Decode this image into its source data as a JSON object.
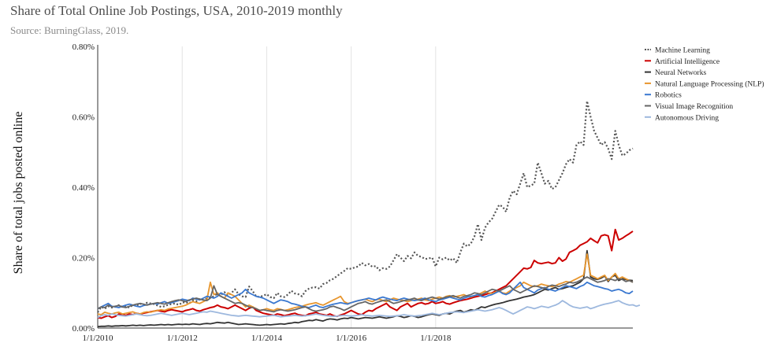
{
  "chart_data": {
    "type": "line",
    "title": "Share of Total Online Job Postings, USA, 2010-2019 monthly",
    "subtitle": "Source: BurningGlass, 2019.",
    "xlabel": "",
    "ylabel": "Share of total jobs posted online",
    "x_start": "2010-01",
    "x_ticks": [
      "1/1/2010",
      "1/1/2012",
      "1/1/2014",
      "1/1/2016",
      "1/1/2018"
    ],
    "y_ticks": [
      "0.00%",
      "0.20%",
      "0.40%",
      "0.60%",
      "0.80%"
    ],
    "ylim": [
      0,
      0.8
    ],
    "grid": "vertical",
    "legend_position": "top-right",
    "series": [
      {
        "name": "Machine Learning",
        "color": "#555555",
        "dash": "dotted",
        "width": 2.2,
        "values": [
          0.045,
          0.06,
          0.055,
          0.062,
          0.058,
          0.06,
          0.065,
          0.06,
          0.062,
          0.058,
          0.066,
          0.063,
          0.07,
          0.065,
          0.072,
          0.07,
          0.068,
          0.064,
          0.06,
          0.062,
          0.066,
          0.068,
          0.07,
          0.066,
          0.072,
          0.074,
          0.07,
          0.078,
          0.076,
          0.082,
          0.08,
          0.084,
          0.086,
          0.09,
          0.098,
          0.094,
          0.102,
          0.092,
          0.1,
          0.11,
          0.096,
          0.09,
          0.088,
          0.118,
          0.105,
          0.09,
          0.088,
          0.092,
          0.096,
          0.088,
          0.085,
          0.1,
          0.09,
          0.088,
          0.095,
          0.106,
          0.098,
          0.096,
          0.09,
          0.105,
          0.112,
          0.115,
          0.116,
          0.112,
          0.125,
          0.128,
          0.136,
          0.14,
          0.148,
          0.155,
          0.162,
          0.17,
          0.168,
          0.172,
          0.175,
          0.185,
          0.178,
          0.182,
          0.174,
          0.176,
          0.164,
          0.17,
          0.168,
          0.175,
          0.192,
          0.21,
          0.2,
          0.19,
          0.205,
          0.198,
          0.215,
          0.205,
          0.202,
          0.196,
          0.198,
          0.2,
          0.175,
          0.2,
          0.195,
          0.2,
          0.192,
          0.198,
          0.185,
          0.215,
          0.24,
          0.232,
          0.24,
          0.26,
          0.295,
          0.25,
          0.285,
          0.3,
          0.31,
          0.33,
          0.35,
          0.345,
          0.33,
          0.37,
          0.39,
          0.38,
          0.41,
          0.44,
          0.4,
          0.405,
          0.41,
          0.47,
          0.44,
          0.41,
          0.418,
          0.395,
          0.4,
          0.42,
          0.44,
          0.465,
          0.48,
          0.47,
          0.52,
          0.53,
          0.52,
          0.645,
          0.6,
          0.56,
          0.54,
          0.52,
          0.528,
          0.51,
          0.48,
          0.56,
          0.52,
          0.49,
          0.495,
          0.505,
          0.51
        ]
      },
      {
        "name": "Artificial Intelligence",
        "color": "#cc0000",
        "dash": "solid",
        "width": 2,
        "values": [
          0.03,
          0.028,
          0.032,
          0.035,
          0.03,
          0.033,
          0.04,
          0.038,
          0.036,
          0.04,
          0.038,
          0.042,
          0.04,
          0.042,
          0.044,
          0.046,
          0.048,
          0.05,
          0.048,
          0.046,
          0.05,
          0.052,
          0.05,
          0.048,
          0.046,
          0.05,
          0.052,
          0.055,
          0.05,
          0.048,
          0.052,
          0.055,
          0.058,
          0.06,
          0.065,
          0.06,
          0.058,
          0.055,
          0.06,
          0.065,
          0.06,
          0.055,
          0.05,
          0.056,
          0.06,
          0.05,
          0.046,
          0.042,
          0.04,
          0.038,
          0.036,
          0.04,
          0.038,
          0.035,
          0.037,
          0.04,
          0.042,
          0.038,
          0.036,
          0.035,
          0.04,
          0.042,
          0.045,
          0.04,
          0.038,
          0.036,
          0.04,
          0.035,
          0.033,
          0.037,
          0.04,
          0.045,
          0.05,
          0.045,
          0.04,
          0.038,
          0.045,
          0.05,
          0.048,
          0.055,
          0.06,
          0.065,
          0.07,
          0.06,
          0.055,
          0.05,
          0.06,
          0.065,
          0.07,
          0.06,
          0.065,
          0.07,
          0.072,
          0.068,
          0.07,
          0.075,
          0.07,
          0.072,
          0.075,
          0.07,
          0.068,
          0.072,
          0.075,
          0.078,
          0.08,
          0.082,
          0.085,
          0.088,
          0.09,
          0.092,
          0.095,
          0.098,
          0.1,
          0.105,
          0.11,
          0.115,
          0.12,
          0.13,
          0.14,
          0.15,
          0.16,
          0.17,
          0.168,
          0.172,
          0.192,
          0.185,
          0.183,
          0.185,
          0.187,
          0.183,
          0.185,
          0.2,
          0.19,
          0.196,
          0.215,
          0.22,
          0.225,
          0.235,
          0.24,
          0.245,
          0.255,
          0.248,
          0.242,
          0.262,
          0.265,
          0.262,
          0.22,
          0.28,
          0.25,
          0.255,
          0.262,
          0.268,
          0.275
        ]
      },
      {
        "name": "Neural Networks",
        "color": "#333333",
        "dash": "solid",
        "width": 1.8,
        "values": [
          0.004,
          0.005,
          0.005,
          0.006,
          0.005,
          0.006,
          0.006,
          0.007,
          0.006,
          0.007,
          0.008,
          0.007,
          0.008,
          0.007,
          0.008,
          0.009,
          0.008,
          0.009,
          0.01,
          0.009,
          0.01,
          0.009,
          0.01,
          0.011,
          0.01,
          0.011,
          0.01,
          0.012,
          0.011,
          0.01,
          0.012,
          0.013,
          0.012,
          0.014,
          0.016,
          0.015,
          0.014,
          0.016,
          0.014,
          0.012,
          0.01,
          0.011,
          0.012,
          0.011,
          0.01,
          0.009,
          0.008,
          0.009,
          0.01,
          0.009,
          0.01,
          0.011,
          0.012,
          0.011,
          0.013,
          0.014,
          0.016,
          0.015,
          0.018,
          0.02,
          0.022,
          0.021,
          0.024,
          0.022,
          0.02,
          0.024,
          0.026,
          0.025,
          0.023,
          0.026,
          0.028,
          0.027,
          0.03,
          0.028,
          0.026,
          0.028,
          0.03,
          0.029,
          0.028,
          0.03,
          0.032,
          0.03,
          0.028,
          0.03,
          0.032,
          0.035,
          0.033,
          0.03,
          0.032,
          0.035,
          0.033,
          0.03,
          0.032,
          0.035,
          0.038,
          0.04,
          0.038,
          0.036,
          0.04,
          0.042,
          0.04,
          0.045,
          0.048,
          0.05,
          0.045,
          0.048,
          0.052,
          0.05,
          0.055,
          0.06,
          0.058,
          0.062,
          0.065,
          0.068,
          0.07,
          0.072,
          0.075,
          0.078,
          0.08,
          0.082,
          0.085,
          0.088,
          0.09,
          0.092,
          0.095,
          0.1,
          0.105,
          0.11,
          0.108,
          0.112,
          0.115,
          0.11,
          0.112,
          0.115,
          0.118,
          0.12,
          0.125,
          0.13,
          0.14,
          0.22,
          0.145,
          0.14,
          0.138,
          0.142,
          0.148,
          0.132,
          0.145,
          0.15,
          0.135,
          0.14,
          0.138,
          0.136,
          0.135
        ]
      },
      {
        "name": "Natural Language Processing (NLP)",
        "color": "#e8962e",
        "dash": "solid",
        "width": 1.8,
        "values": [
          0.04,
          0.038,
          0.045,
          0.042,
          0.04,
          0.043,
          0.045,
          0.04,
          0.042,
          0.044,
          0.046,
          0.042,
          0.04,
          0.044,
          0.046,
          0.045,
          0.048,
          0.05,
          0.052,
          0.05,
          0.054,
          0.056,
          0.058,
          0.06,
          0.062,
          0.065,
          0.07,
          0.075,
          0.072,
          0.07,
          0.075,
          0.08,
          0.13,
          0.095,
          0.1,
          0.09,
          0.085,
          0.1,
          0.095,
          0.09,
          0.08,
          0.07,
          0.06,
          0.065,
          0.06,
          0.055,
          0.05,
          0.052,
          0.055,
          0.052,
          0.05,
          0.055,
          0.053,
          0.05,
          0.052,
          0.055,
          0.058,
          0.06,
          0.062,
          0.065,
          0.068,
          0.07,
          0.072,
          0.068,
          0.065,
          0.07,
          0.075,
          0.08,
          0.085,
          0.09,
          0.075,
          0.07,
          0.072,
          0.075,
          0.078,
          0.08,
          0.082,
          0.078,
          0.075,
          0.08,
          0.082,
          0.078,
          0.075,
          0.08,
          0.085,
          0.082,
          0.08,
          0.078,
          0.075,
          0.078,
          0.08,
          0.082,
          0.085,
          0.08,
          0.078,
          0.082,
          0.085,
          0.088,
          0.085,
          0.09,
          0.092,
          0.088,
          0.09,
          0.092,
          0.095,
          0.09,
          0.088,
          0.092,
          0.095,
          0.1,
          0.105,
          0.1,
          0.098,
          0.102,
          0.106,
          0.1,
          0.098,
          0.105,
          0.11,
          0.115,
          0.12,
          0.13,
          0.125,
          0.12,
          0.118,
          0.12,
          0.125,
          0.122,
          0.12,
          0.118,
          0.12,
          0.125,
          0.128,
          0.132,
          0.13,
          0.135,
          0.14,
          0.145,
          0.15,
          0.21,
          0.15,
          0.145,
          0.14,
          0.145,
          0.15,
          0.135,
          0.145,
          0.155,
          0.14,
          0.145,
          0.14,
          0.135,
          0.13
        ]
      },
      {
        "name": "Robotics",
        "color": "#3a78d0",
        "dash": "solid",
        "width": 1.8,
        "values": [
          0.055,
          0.06,
          0.065,
          0.07,
          0.062,
          0.06,
          0.058,
          0.062,
          0.065,
          0.068,
          0.065,
          0.062,
          0.06,
          0.064,
          0.066,
          0.068,
          0.07,
          0.068,
          0.072,
          0.075,
          0.07,
          0.072,
          0.075,
          0.078,
          0.082,
          0.08,
          0.078,
          0.085,
          0.082,
          0.08,
          0.085,
          0.09,
          0.088,
          0.085,
          0.09,
          0.1,
          0.095,
          0.09,
          0.085,
          0.09,
          0.095,
          0.1,
          0.11,
          0.1,
          0.095,
          0.09,
          0.088,
          0.085,
          0.08,
          0.075,
          0.07,
          0.075,
          0.08,
          0.078,
          0.075,
          0.07,
          0.068,
          0.065,
          0.062,
          0.06,
          0.058,
          0.062,
          0.065,
          0.06,
          0.058,
          0.062,
          0.065,
          0.068,
          0.07,
          0.072,
          0.07,
          0.068,
          0.072,
          0.075,
          0.078,
          0.08,
          0.082,
          0.085,
          0.082,
          0.08,
          0.085,
          0.088,
          0.085,
          0.082,
          0.08,
          0.078,
          0.082,
          0.085,
          0.082,
          0.08,
          0.078,
          0.08,
          0.082,
          0.085,
          0.08,
          0.078,
          0.075,
          0.08,
          0.082,
          0.085,
          0.088,
          0.085,
          0.082,
          0.08,
          0.085,
          0.088,
          0.09,
          0.092,
          0.095,
          0.09,
          0.088,
          0.092,
          0.095,
          0.1,
          0.105,
          0.098,
          0.095,
          0.1,
          0.11,
          0.12,
          0.13,
          0.115,
          0.11,
          0.105,
          0.1,
          0.108,
          0.112,
          0.115,
          0.11,
          0.108,
          0.105,
          0.11,
          0.115,
          0.12,
          0.118,
          0.115,
          0.112,
          0.118,
          0.122,
          0.13,
          0.125,
          0.12,
          0.118,
          0.115,
          0.112,
          0.11,
          0.105,
          0.108,
          0.11,
          0.106,
          0.1,
          0.098,
          0.105
        ]
      },
      {
        "name": "Visual Image Recognition",
        "color": "#666666",
        "dash": "solid",
        "width": 1.8,
        "values": [
          0.055,
          0.06,
          0.058,
          0.065,
          0.06,
          0.062,
          0.064,
          0.06,
          0.058,
          0.062,
          0.065,
          0.068,
          0.07,
          0.068,
          0.065,
          0.068,
          0.07,
          0.072,
          0.07,
          0.068,
          0.072,
          0.075,
          0.078,
          0.08,
          0.078,
          0.075,
          0.08,
          0.082,
          0.085,
          0.082,
          0.08,
          0.078,
          0.085,
          0.12,
          0.095,
          0.09,
          0.085,
          0.08,
          0.075,
          0.07,
          0.072,
          0.07,
          0.065,
          0.06,
          0.058,
          0.055,
          0.05,
          0.052,
          0.05,
          0.048,
          0.046,
          0.05,
          0.052,
          0.05,
          0.048,
          0.05,
          0.052,
          0.055,
          0.058,
          0.06,
          0.055,
          0.05,
          0.048,
          0.05,
          0.052,
          0.055,
          0.06,
          0.062,
          0.058,
          0.055,
          0.05,
          0.055,
          0.06,
          0.065,
          0.07,
          0.072,
          0.075,
          0.07,
          0.068,
          0.072,
          0.075,
          0.078,
          0.08,
          0.075,
          0.07,
          0.072,
          0.075,
          0.078,
          0.08,
          0.082,
          0.085,
          0.08,
          0.078,
          0.082,
          0.085,
          0.088,
          0.085,
          0.082,
          0.085,
          0.088,
          0.09,
          0.092,
          0.088,
          0.085,
          0.09,
          0.092,
          0.095,
          0.1,
          0.098,
          0.095,
          0.1,
          0.105,
          0.11,
          0.108,
          0.105,
          0.11,
          0.115,
          0.12,
          0.11,
          0.105,
          0.1,
          0.105,
          0.11,
          0.115,
          0.12,
          0.118,
          0.115,
          0.112,
          0.118,
          0.122,
          0.12,
          0.118,
          0.122,
          0.125,
          0.13,
          0.128,
          0.13,
          0.135,
          0.14,
          0.145,
          0.14,
          0.135,
          0.13,
          0.132,
          0.135,
          0.14,
          0.138,
          0.135,
          0.14,
          0.138,
          0.132,
          0.135,
          0.13
        ]
      },
      {
        "name": "Autonomous Driving",
        "color": "#9db8de",
        "dash": "solid",
        "width": 1.8,
        "values": [
          0.03,
          0.035,
          0.038,
          0.036,
          0.04,
          0.038,
          0.036,
          0.035,
          0.034,
          0.036,
          0.038,
          0.04,
          0.038,
          0.036,
          0.035,
          0.036,
          0.038,
          0.04,
          0.042,
          0.04,
          0.038,
          0.036,
          0.038,
          0.04,
          0.042,
          0.04,
          0.038,
          0.04,
          0.042,
          0.044,
          0.046,
          0.045,
          0.048,
          0.046,
          0.044,
          0.042,
          0.04,
          0.038,
          0.036,
          0.035,
          0.034,
          0.035,
          0.036,
          0.035,
          0.034,
          0.033,
          0.032,
          0.033,
          0.034,
          0.035,
          0.036,
          0.034,
          0.032,
          0.033,
          0.034,
          0.035,
          0.036,
          0.035,
          0.034,
          0.035,
          0.036,
          0.038,
          0.04,
          0.038,
          0.036,
          0.035,
          0.034,
          0.033,
          0.034,
          0.035,
          0.036,
          0.035,
          0.034,
          0.035,
          0.036,
          0.038,
          0.036,
          0.035,
          0.034,
          0.035,
          0.036,
          0.035,
          0.034,
          0.033,
          0.034,
          0.035,
          0.036,
          0.038,
          0.036,
          0.035,
          0.034,
          0.035,
          0.036,
          0.038,
          0.04,
          0.042,
          0.04,
          0.038,
          0.04,
          0.042,
          0.044,
          0.045,
          0.046,
          0.045,
          0.044,
          0.046,
          0.048,
          0.05,
          0.052,
          0.05,
          0.048,
          0.05,
          0.052,
          0.055,
          0.058,
          0.055,
          0.05,
          0.045,
          0.04,
          0.045,
          0.05,
          0.055,
          0.06,
          0.058,
          0.055,
          0.058,
          0.062,
          0.06,
          0.058,
          0.062,
          0.065,
          0.07,
          0.078,
          0.072,
          0.065,
          0.06,
          0.058,
          0.056,
          0.058,
          0.06,
          0.055,
          0.058,
          0.062,
          0.065,
          0.068,
          0.07,
          0.072,
          0.075,
          0.078,
          0.072,
          0.068,
          0.065,
          0.066,
          0.062,
          0.065
        ]
      }
    ]
  }
}
